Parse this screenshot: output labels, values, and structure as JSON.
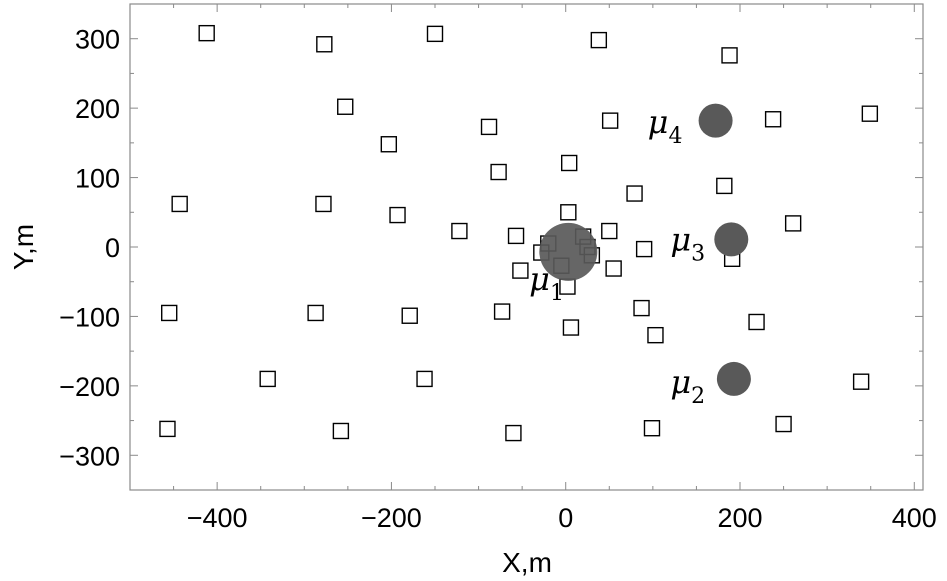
{
  "chart_data": {
    "type": "scatter",
    "title": "",
    "xlabel": "X,m",
    "ylabel": "Y,m",
    "xlim": [
      -500,
      410
    ],
    "ylim": [
      -350,
      350
    ],
    "xticks": [
      -400,
      -200,
      0,
      200,
      400
    ],
    "yticks": [
      -300,
      -200,
      -100,
      0,
      100,
      200,
      300
    ],
    "xtick_labels": [
      "−400",
      "−200",
      "0",
      "200",
      "400"
    ],
    "ytick_labels": [
      "−300",
      "−200",
      "−100",
      "0",
      "100",
      "200",
      "300"
    ],
    "grid": false,
    "legend": false,
    "series": [
      {
        "marker": "open-square",
        "color": "#000000",
        "points": [
          {
            "x": -412,
            "y": 308
          },
          {
            "x": -277,
            "y": 292
          },
          {
            "x": -150,
            "y": 307
          },
          {
            "x": 38,
            "y": 298
          },
          {
            "x": 188,
            "y": 276
          },
          {
            "x": -253,
            "y": 202
          },
          {
            "x": -88,
            "y": 173
          },
          {
            "x": 51,
            "y": 182
          },
          {
            "x": 238,
            "y": 184
          },
          {
            "x": 349,
            "y": 192
          },
          {
            "x": -203,
            "y": 148
          },
          {
            "x": 4,
            "y": 121
          },
          {
            "x": -77,
            "y": 108
          },
          {
            "x": 182,
            "y": 88
          },
          {
            "x": 79,
            "y": 77
          },
          {
            "x": -443,
            "y": 62
          },
          {
            "x": -278,
            "y": 62
          },
          {
            "x": -193,
            "y": 46
          },
          {
            "x": 3,
            "y": 50
          },
          {
            "x": 261,
            "y": 34
          },
          {
            "x": -122,
            "y": 23
          },
          {
            "x": -57,
            "y": 16
          },
          {
            "x": 50,
            "y": 23
          },
          {
            "x": 20,
            "y": 15
          },
          {
            "x": -20,
            "y": 5
          },
          {
            "x": 25,
            "y": 0
          },
          {
            "x": 90,
            "y": -3
          },
          {
            "x": -28,
            "y": -8
          },
          {
            "x": 30,
            "y": -12
          },
          {
            "x": 191,
            "y": -17
          },
          {
            "x": -5,
            "y": -27
          },
          {
            "x": 55,
            "y": -31
          },
          {
            "x": -52,
            "y": -34
          },
          {
            "x": 2,
            "y": -57
          },
          {
            "x": -455,
            "y": -95
          },
          {
            "x": -287,
            "y": -95
          },
          {
            "x": -179,
            "y": -99
          },
          {
            "x": -73,
            "y": -93
          },
          {
            "x": 87,
            "y": -88
          },
          {
            "x": 219,
            "y": -108
          },
          {
            "x": 6,
            "y": -116
          },
          {
            "x": 103,
            "y": -127
          },
          {
            "x": -342,
            "y": -190
          },
          {
            "x": -162,
            "y": -190
          },
          {
            "x": 339,
            "y": -194
          },
          {
            "x": -457,
            "y": -262
          },
          {
            "x": -258,
            "y": -265
          },
          {
            "x": -60,
            "y": -268
          },
          {
            "x": 99,
            "y": -261
          },
          {
            "x": 250,
            "y": -255
          }
        ]
      },
      {
        "marker": "filled-circle",
        "color": "#595959",
        "points": [
          {
            "x": 172,
            "y": 182,
            "size": "small"
          },
          {
            "x": 190,
            "y": 11,
            "size": "small"
          },
          {
            "x": 193,
            "y": -190,
            "size": "small"
          },
          {
            "x": 3,
            "y": -7,
            "size": "large"
          }
        ]
      }
    ],
    "annotations": [
      {
        "base": "μ",
        "sub": "1",
        "x": -22,
        "y": -62
      },
      {
        "base": "μ",
        "sub": "2",
        "x": 140,
        "y": -210
      },
      {
        "base": "μ",
        "sub": "3",
        "x": 140,
        "y": -5
      },
      {
        "base": "μ",
        "sub": "4",
        "x": 114,
        "y": 164
      }
    ]
  }
}
